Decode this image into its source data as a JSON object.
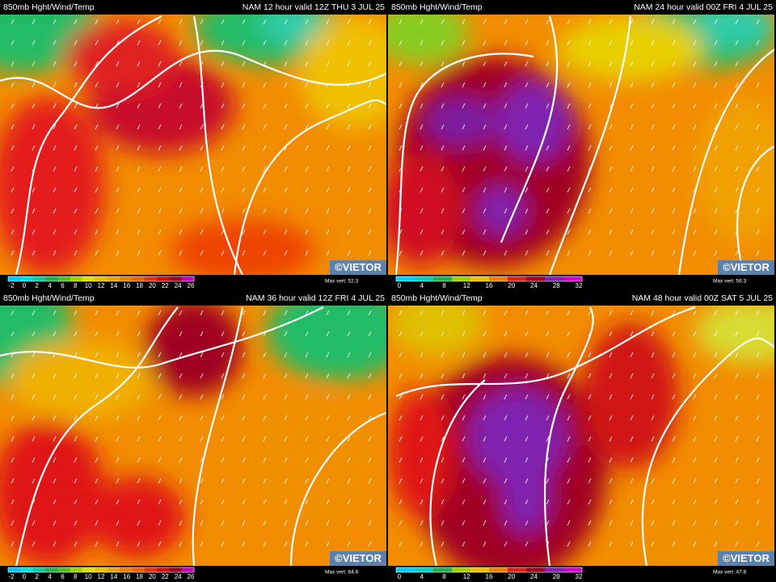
{
  "panels": [
    {
      "title": "850mb Hght/Wind/Temp",
      "run": "NAM 12 hour valid 12Z THU  3 JUL 25",
      "colorbar": [
        -2,
        0,
        2,
        4,
        6,
        8,
        10,
        12,
        14,
        16,
        18,
        20,
        22,
        24,
        26
      ],
      "max_vert": "Max vert: 52.3",
      "watermark": "©VIETOR"
    },
    {
      "title": "850mb Hght/Wind/Temp",
      "run": "NAM 24 hour valid 00Z FRI  4 JUL 25",
      "colorbar": [
        0,
        4,
        8,
        12,
        16,
        20,
        24,
        28,
        32
      ],
      "max_vert": "Max vert: 56.3",
      "watermark": "©VIETOR"
    },
    {
      "title": "850mb Hght/Wind/Temp",
      "run": "NAM 36 hour valid 12Z FRI  4 JUL 25",
      "colorbar": [
        -2,
        0,
        2,
        4,
        6,
        8,
        10,
        12,
        14,
        16,
        18,
        20,
        22,
        24,
        26
      ],
      "max_vert": "Max vert: 64.8",
      "watermark": "©VIETOR"
    },
    {
      "title": "850mb Hght/Wind/Temp",
      "run": "NAM 48 hour valid 00Z SAT  5 JUL 25",
      "colorbar": [
        0,
        4,
        8,
        12,
        16,
        20,
        24,
        28,
        32
      ],
      "max_vert": "Max vert: 47.8",
      "watermark": "©VIETOR"
    }
  ]
}
